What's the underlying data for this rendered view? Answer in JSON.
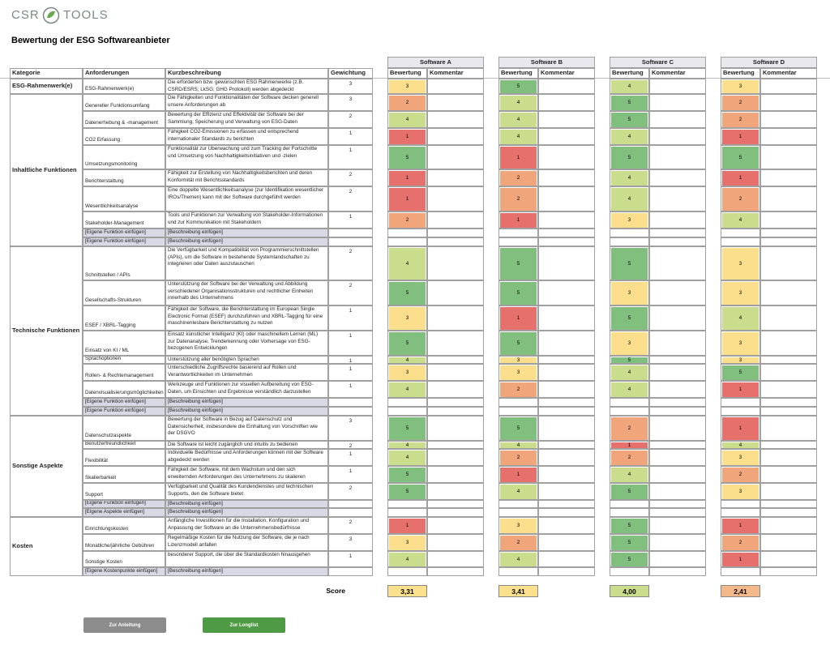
{
  "header": {
    "logo_left": "CSR",
    "logo_right": "TOOLS",
    "title": "Bewertung der ESG Softwareanbieter"
  },
  "table": {
    "columns": [
      "Kategorie",
      "Anforderungen",
      "Kurzbeschreibung",
      "Gewichtung"
    ],
    "software": [
      "Software A",
      "Software B",
      "Software C",
      "Software D"
    ],
    "sub_headers": [
      "Bewertung",
      "Kommentar"
    ],
    "rating_colors": {
      "1": "#e6716c",
      "2": "#f0a57a",
      "3": "#fbdf8c",
      "4": "#cadd8c",
      "5": "#80bf7e"
    },
    "placeholder_color": "#d9d9e6",
    "categories": [
      {
        "label": "ESG-Rahmenwerk(e)",
        "rows": [
          {
            "requirement": "ESG-Rahmenwerk(e)",
            "description": "Die erforderten bzw. gewünschten ESG Rahmenwerke (z.B. CSRD/ESRS; LkSG; GHG Protokoll) werden abgedeckt",
            "weight": 3,
            "ratings": [
              3,
              5,
              4,
              3
            ]
          }
        ]
      },
      {
        "label": "Inhaltliche Funktionen",
        "rows": [
          {
            "requirement": "Genereller Funktionsumfang",
            "description": "Die Fähigkeiten und Funktionalitäten der Software decken generell unsere Anforderungen ab",
            "weight": 3,
            "ratings": [
              2,
              4,
              5,
              2
            ]
          },
          {
            "requirement": "Datenerhebung & -management",
            "description": "Bewertung der Effizienz und Effektivität der Software bei der Sammlung, Speicherung und Verwaltung von ESG-Daten",
            "weight": 2,
            "ratings": [
              4,
              4,
              5,
              2
            ]
          },
          {
            "requirement": "CO2 Erfassung",
            "description": "Fähigkeit CO2-Emissionen zu erfassen und entsprechend internationaler Standards zu berichten",
            "weight": 1,
            "ratings": [
              1,
              4,
              4,
              1
            ]
          },
          {
            "requirement": "Umsetzungsmonitoring",
            "description": "Funktionalität zur Überwachung und zum Tracking der Fortschritte und Umsetzung von Nachhaltigkeitsinitiativen und -zielen",
            "weight": 1,
            "ratings": [
              5,
              1,
              5,
              5
            ]
          },
          {
            "requirement": "Berichterstattung",
            "description": "Fähigkeit zur Erstellung von Nachhaltigkeitsberichten und deren Konformität mit Berichtsstandards",
            "weight": 2,
            "ratings": [
              1,
              2,
              4,
              1
            ]
          },
          {
            "requirement": "Wesentlichkeitsanalyse",
            "description": "Eine doppelte Wesentlichkeitsanalyse (zur Identifikation wesentlicher IROs/Themen) kann mit der Software durchgeführt werden",
            "weight": 2,
            "ratings": [
              1,
              2,
              4,
              2
            ]
          },
          {
            "requirement": "Stakeholder-Management",
            "description": "Tools und Funktionen zur Verwaltung von Stakeholder-Informationen und zur Kommunikation mit Stakeholdern",
            "weight": 1,
            "ratings": [
              2,
              1,
              3,
              4
            ]
          },
          {
            "requirement": "[Eigene Funktion einfügen]",
            "description": "[Beschreibung einfügen]"
          },
          {
            "requirement": "[Eigene Funktion einfügen]",
            "description": "[Beschreibung einfügen]"
          }
        ]
      },
      {
        "label": "Technische Funktionen",
        "rows": [
          {
            "requirement": "Schnittstellen / APIs",
            "description": "Die Verfügbarkeit und Kompatibilität von Programmierschnittstellen (APIs), um die Software in bestehende Systemlandschaften zu integrieren oder Daten auszutauschen",
            "weight": 2,
            "ratings": [
              4,
              5,
              5,
              3
            ]
          },
          {
            "requirement": "Gesellschafts-Strukturen",
            "description": "Unterstützung der Software bei der Verwaltung und Abbildung verschiedener Organisationsstrukturen und rechtlicher Einheiten innerhalb des Unternehmens",
            "weight": 2,
            "ratings": [
              5,
              5,
              3,
              3
            ]
          },
          {
            "requirement": "ESEF / XBRL-Tagging",
            "description": "Fähigkeit der Software, die Berichterstattung im European Single Electronic Format (ESEF) durchzuführen und XBRL-Tagging für eine maschinenlesbare Berichterstattung zu nutzen",
            "weight": 1,
            "ratings": [
              3,
              1,
              5,
              4
            ]
          },
          {
            "requirement": "Einsatz von KI / ML",
            "description": "Einsatz künstlicher Intelligenz (KI) oder maschinellem Lernen (ML) zur Datenanalyse, Trenderkennung oder Vorhersage von ESG-bezogenen Entwicklungen",
            "weight": 1,
            "ratings": [
              5,
              5,
              3,
              3
            ]
          },
          {
            "requirement": "Sprachoptionen",
            "description": "Unterstützung aller benötigten Sprachen",
            "weight": 1,
            "ratings": [
              4,
              3,
              5,
              3
            ]
          },
          {
            "requirement": "Rollen- & Rechtemanagement",
            "description": "Unterschiedliche Zugriffsrechte basierend auf Rollen und Verantwortlichkeiten im Unternehmen",
            "weight": 1,
            "ratings": [
              3,
              3,
              4,
              5
            ]
          },
          {
            "requirement": "Datenvisualisierungsmöglichkeiten",
            "description": "Werkzeuge und Funktionen zur visuellen Aufbereitung von ESG-Daten, um Einsichten und Ergebnisse verständlich darzustellen",
            "weight": 1,
            "ratings": [
              4,
              2,
              4,
              1
            ]
          },
          {
            "requirement": "[Eigene Funktion einfügen]",
            "description": "[Beschreibung einfügen]"
          },
          {
            "requirement": "[Eigene Funktion einfügen]",
            "description": "[Beschreibung einfügen]"
          }
        ]
      },
      {
        "label": "Sonstige Aspekte",
        "rows": [
          {
            "requirement": "Datenschutzaspekte",
            "description": "Bewertung der Software in Bezug auf Datenschutz und Datensicherheit, insbesondere die Einhaltung von Vorschriften wie der DSGVO",
            "weight": 3,
            "ratings": [
              5,
              5,
              2,
              1
            ]
          },
          {
            "requirement": "Benutzerfreundlichkeit",
            "description": "Die Software ist leicht zugänglich und intuitiv zu bedienen",
            "weight": 2,
            "ratings": [
              4,
              4,
              1,
              4
            ]
          },
          {
            "requirement": "Flexibilität",
            "description": "Individuelle Bedürfnisse und Anforderungen können mit der Software abgedeckt werden",
            "weight": 1,
            "ratings": [
              4,
              2,
              2,
              3
            ]
          },
          {
            "requirement": "Skalierbarkeit",
            "description": "Fähigkeit der Software, mit dem Wachstum und den sich erweiternden Anforderungen des Unternehmens zu skalieren",
            "weight": 1,
            "ratings": [
              5,
              1,
              4,
              2
            ]
          },
          {
            "requirement": "Support",
            "description": "Verfügbarkeit und Qualität des Kundendienstes und technischen Supports, den die Software bietet",
            "weight": 2,
            "ratings": [
              5,
              4,
              5,
              3
            ]
          },
          {
            "requirement": "[Eigene Funktion einfügen]",
            "description": "[Beschreibung einfügen]"
          },
          {
            "requirement": "[Eigene Aspekte einfügen]",
            "description": "[Beschreibung einfügen]"
          }
        ]
      },
      {
        "label": "Kosten",
        "rows": [
          {
            "requirement": "Einrichtungskosten",
            "description": "Anfängliche Investitionen für die Installation, Konfiguration und Anpassung der Software an die Unternehmensbedürfnisse",
            "weight": 2,
            "ratings": [
              1,
              3,
              5,
              1
            ]
          },
          {
            "requirement": "Monatliche/jährliche Gebühren",
            "description": "Regelmäßige Kosten für die Nutzung der Software, die je nach Lizenzmodell anfallen",
            "weight": 3,
            "ratings": [
              3,
              2,
              5,
              2
            ]
          },
          {
            "requirement": "Sonstige Kosten",
            "description": "besonderer Support, die über die Standardkosten hinausgehen",
            "weight": 1,
            "ratings": [
              4,
              4,
              5,
              1
            ]
          },
          {
            "requirement": "[Eigene Kostenpunkte einfügen]",
            "description": "[Beschreibung einfügen]"
          }
        ]
      }
    ],
    "score_label": "Score",
    "scores": [
      "3,31",
      "3,41",
      "4,00",
      "2,41"
    ],
    "score_colors": [
      "#fbe08e",
      "#fbe08e",
      "#cadd8c",
      "#f3b98a"
    ]
  },
  "buttons": [
    {
      "label": "Zur Anleitung",
      "color": "#8c8c8c"
    },
    {
      "label": "Zur Longlist",
      "color": "#4f9a44"
    }
  ]
}
